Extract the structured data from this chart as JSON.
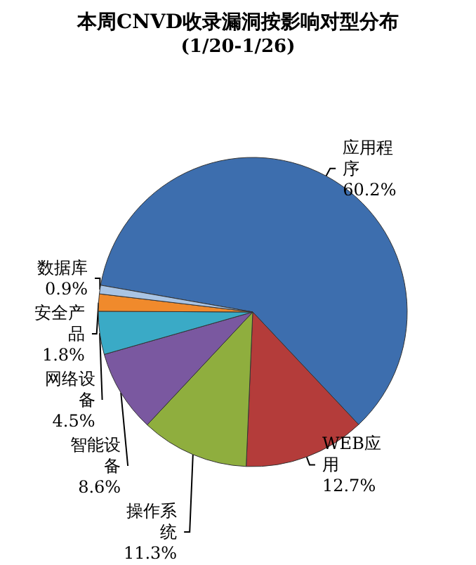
{
  "chart_data": {
    "type": "pie",
    "title": "本周CNVD收录漏洞按影响对型分布",
    "subtitle": "(1/20-1/26)",
    "categories": [
      "应用程序",
      "WEB应用",
      "操作系统",
      "智能设备",
      "网络设备",
      "安全产品",
      "数据库"
    ],
    "values": [
      60.2,
      12.7,
      11.3,
      8.6,
      4.5,
      1.8,
      0.9
    ],
    "value_labels": [
      "60.2%",
      "12.7%",
      "11.3%",
      "8.6%",
      "4.5%",
      "1.8%",
      "0.9%"
    ],
    "colors": [
      "#3d6eae",
      "#b43c3a",
      "#8fae3e",
      "#7a58a0",
      "#3aaac6",
      "#f08a2c",
      "#a9c4e4"
    ],
    "legend": false
  }
}
